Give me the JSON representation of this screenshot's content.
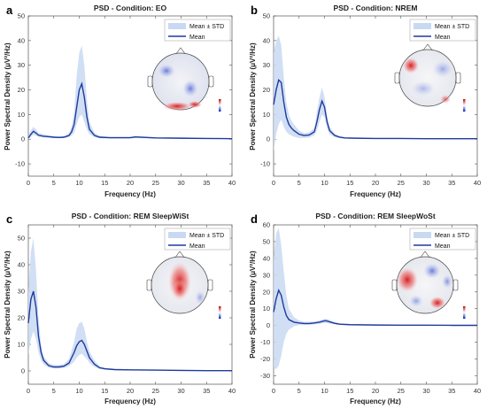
{
  "chart_data": [
    {
      "panel": "a",
      "type": "line",
      "title": "PSD - Condition: EO",
      "xlabel": "Frequency (Hz)",
      "ylabel": "Power Spectral Density (μV²/Hz)",
      "xlim": [
        0,
        40
      ],
      "ylim": [
        -15,
        50
      ],
      "xticks": [
        0,
        5,
        10,
        15,
        20,
        25,
        30,
        35,
        40
      ],
      "yticks": [
        -10,
        0,
        10,
        20,
        30,
        40,
        50
      ],
      "legend": [
        "Mean ± STD",
        "Mean"
      ],
      "legend_position": "top-right",
      "series": [
        {
          "name": "Mean",
          "x": [
            0,
            0.5,
            1,
            1.5,
            2,
            3,
            4,
            5,
            6,
            7,
            8,
            8.5,
            9,
            9.5,
            10,
            10.5,
            11,
            11.5,
            12,
            13,
            14,
            16,
            20,
            21,
            25,
            30,
            35,
            40
          ],
          "y": [
            0.5,
            2,
            3.2,
            2.5,
            1.6,
            1.2,
            1.0,
            0.8,
            0.7,
            0.8,
            1.5,
            3,
            6,
            13,
            20,
            22.5,
            17,
            9,
            4,
            1.5,
            0.8,
            0.6,
            0.6,
            0.9,
            0.5,
            0.4,
            0.3,
            0.2
          ],
          "lower": [
            0,
            1,
            1.8,
            1.4,
            1.0,
            0.7,
            0.6,
            0.5,
            0.4,
            0.5,
            0.9,
            1.5,
            2.5,
            6,
            9,
            10,
            7,
            4,
            2,
            0.8,
            0.4,
            0.3,
            0.3,
            0.5,
            0.3,
            0.2,
            0.1,
            0.1
          ],
          "upper": [
            1.5,
            3.5,
            5,
            4,
            2.5,
            2,
            1.6,
            1.3,
            1.2,
            1.3,
            2.5,
            5,
            11,
            26,
            35,
            38,
            30,
            16,
            7,
            2.5,
            1.4,
            1.0,
            1.0,
            1.4,
            0.8,
            0.7,
            0.5,
            0.4
          ]
        }
      ]
    },
    {
      "panel": "b",
      "type": "line",
      "title": "PSD - Condition: NREM",
      "xlabel": "Frequency (Hz)",
      "ylabel": "Power Spectral Density (μV²/Hz)",
      "xlim": [
        0,
        40
      ],
      "ylim": [
        -15,
        50
      ],
      "xticks": [
        0,
        5,
        10,
        15,
        20,
        25,
        30,
        35,
        40
      ],
      "yticks": [
        -10,
        0,
        10,
        20,
        30,
        40,
        50
      ],
      "legend": [
        "Mean ± STD",
        "Mean"
      ],
      "legend_position": "top-right",
      "series": [
        {
          "name": "Mean",
          "x": [
            0,
            0.5,
            1,
            1.5,
            2,
            2.5,
            3,
            3.5,
            4,
            5,
            6,
            7,
            8,
            8.5,
            9,
            9.5,
            10,
            10.5,
            11,
            12,
            13,
            14,
            16,
            20,
            25,
            30,
            35,
            40
          ],
          "y": [
            14,
            20,
            24,
            23,
            15,
            9,
            6,
            4.5,
            3.5,
            2,
            1.5,
            1.7,
            3,
            7,
            12,
            15.5,
            13,
            7,
            3.5,
            1.5,
            0.8,
            0.5,
            0.4,
            0.3,
            0.3,
            0.2,
            0.2,
            0.2
          ],
          "lower": [
            -5,
            2,
            6,
            8,
            5,
            3,
            2,
            1.5,
            1,
            0.5,
            0.5,
            0.6,
            1.5,
            3.5,
            7,
            10,
            9,
            4.5,
            2,
            0.8,
            0.4,
            0.2,
            0.2,
            0.1,
            0.1,
            0.1,
            0.1,
            0.1
          ],
          "upper": [
            35,
            40,
            42,
            38,
            25,
            15,
            10,
            7.5,
            6,
            3.5,
            2.5,
            2.8,
            4.5,
            11,
            17,
            21,
            17,
            9.5,
            5,
            2.2,
            1.2,
            0.8,
            0.6,
            0.5,
            0.5,
            0.4,
            0.3,
            0.3
          ]
        }
      ]
    },
    {
      "panel": "c",
      "type": "line",
      "title": "PSD - Condition: REM SleepWiSt",
      "xlabel": "Frequency (Hz)",
      "ylabel": "Power Spectral Density (μV²/Hz)",
      "xlim": [
        0,
        40
      ],
      "ylim": [
        -5,
        55
      ],
      "xticks": [
        0,
        5,
        10,
        15,
        20,
        25,
        30,
        35,
        40
      ],
      "yticks": [
        0,
        10,
        20,
        30,
        40,
        50
      ],
      "legend": [
        "Mean ± STD",
        "Mean"
      ],
      "legend_position": "top-right",
      "series": [
        {
          "name": "Mean",
          "x": [
            0,
            0.5,
            1,
            1.5,
            2,
            2.5,
            3,
            4,
            5,
            6,
            7,
            8,
            9,
            9.5,
            10,
            10.5,
            11,
            11.5,
            12,
            13,
            14,
            15,
            17,
            20,
            25,
            30,
            35,
            40
          ],
          "y": [
            18,
            27,
            30,
            24,
            13,
            7,
            4,
            2,
            1.5,
            1.5,
            1.8,
            3,
            7,
            9.5,
            11,
            11.5,
            10,
            7.5,
            5,
            2.5,
            1.2,
            0.8,
            0.5,
            0.4,
            0.3,
            0.2,
            0.1,
            0.1
          ],
          "lower": [
            6,
            12,
            15,
            12,
            7,
            4,
            2.5,
            1.2,
            0.9,
            0.9,
            1.1,
            1.8,
            3.5,
            5,
            6,
            6.5,
            5.5,
            4.5,
            3,
            1.5,
            0.7,
            0.5,
            0.3,
            0.2,
            0.1,
            0.1,
            0.0,
            0.0
          ],
          "upper": [
            30,
            45,
            50,
            38,
            20,
            10,
            5.5,
            3,
            2.2,
            2.2,
            2.6,
            4.5,
            11,
            16,
            18,
            18.5,
            16,
            11,
            7.5,
            3.8,
            1.8,
            1.2,
            0.8,
            0.6,
            0.5,
            0.4,
            0.3,
            0.2
          ]
        }
      ]
    },
    {
      "panel": "d",
      "type": "line",
      "title": "PSD - Condition: REM SleepWoSt",
      "xlabel": "Frequency (Hz)",
      "ylabel": "Power Spectral Density (μV²/Hz)",
      "xlim": [
        0,
        40
      ],
      "ylim": [
        -35,
        60
      ],
      "xticks": [
        0,
        5,
        10,
        15,
        20,
        25,
        30,
        35,
        40
      ],
      "yticks": [
        -30,
        -20,
        -10,
        0,
        10,
        20,
        30,
        40,
        50,
        60
      ],
      "legend": [
        "Mean ± STD",
        "Mean"
      ],
      "legend_position": "top-right",
      "series": [
        {
          "name": "Mean",
          "x": [
            0,
            0.5,
            1,
            1.5,
            2,
            2.5,
            3,
            4,
            5,
            6,
            7,
            8,
            9,
            10,
            10.5,
            11,
            12,
            13,
            15,
            20,
            25,
            30,
            35,
            40
          ],
          "y": [
            8,
            16,
            21,
            18,
            11,
            6,
            3.5,
            2,
            1.5,
            1.2,
            1.2,
            1.5,
            2,
            2.8,
            2.7,
            2.2,
            1.3,
            0.8,
            0.5,
            0.3,
            0.2,
            0.2,
            0.1,
            0.1
          ],
          "lower": [
            -25,
            -26,
            -24,
            -18,
            -10,
            -5,
            -2.5,
            -0.5,
            0.3,
            0.3,
            0.3,
            0.6,
            1,
            1.5,
            1.5,
            1.2,
            0.6,
            0.3,
            0.2,
            0.1,
            0.0,
            0.0,
            0.0,
            0.0
          ],
          "upper": [
            40,
            55,
            58,
            48,
            32,
            18,
            10,
            5,
            3,
            2.2,
            2.2,
            2.4,
            3,
            4,
            4,
            3.3,
            2,
            1.3,
            0.8,
            0.5,
            0.4,
            0.3,
            0.2,
            0.2
          ]
        }
      ]
    }
  ]
}
